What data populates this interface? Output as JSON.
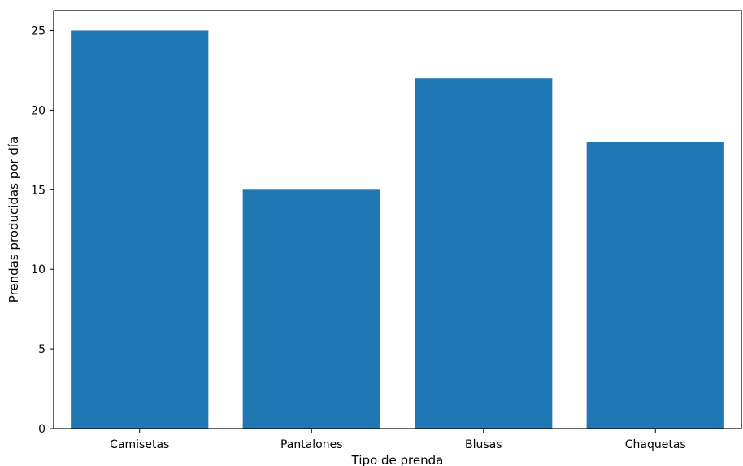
{
  "chart_data": {
    "type": "bar",
    "title": "",
    "xlabel": "Tipo de prenda",
    "ylabel": "Prendas producidas por día",
    "categories": [
      "Camisetas",
      "Pantalones",
      "Blusas",
      "Chaquetas"
    ],
    "values": [
      25,
      15,
      22,
      18
    ],
    "ylim": [
      0,
      26.25
    ],
    "yticks": [
      "0",
      "5",
      "10",
      "15",
      "20",
      "25"
    ],
    "grid": false,
    "bar_color": "#1f77b4"
  }
}
